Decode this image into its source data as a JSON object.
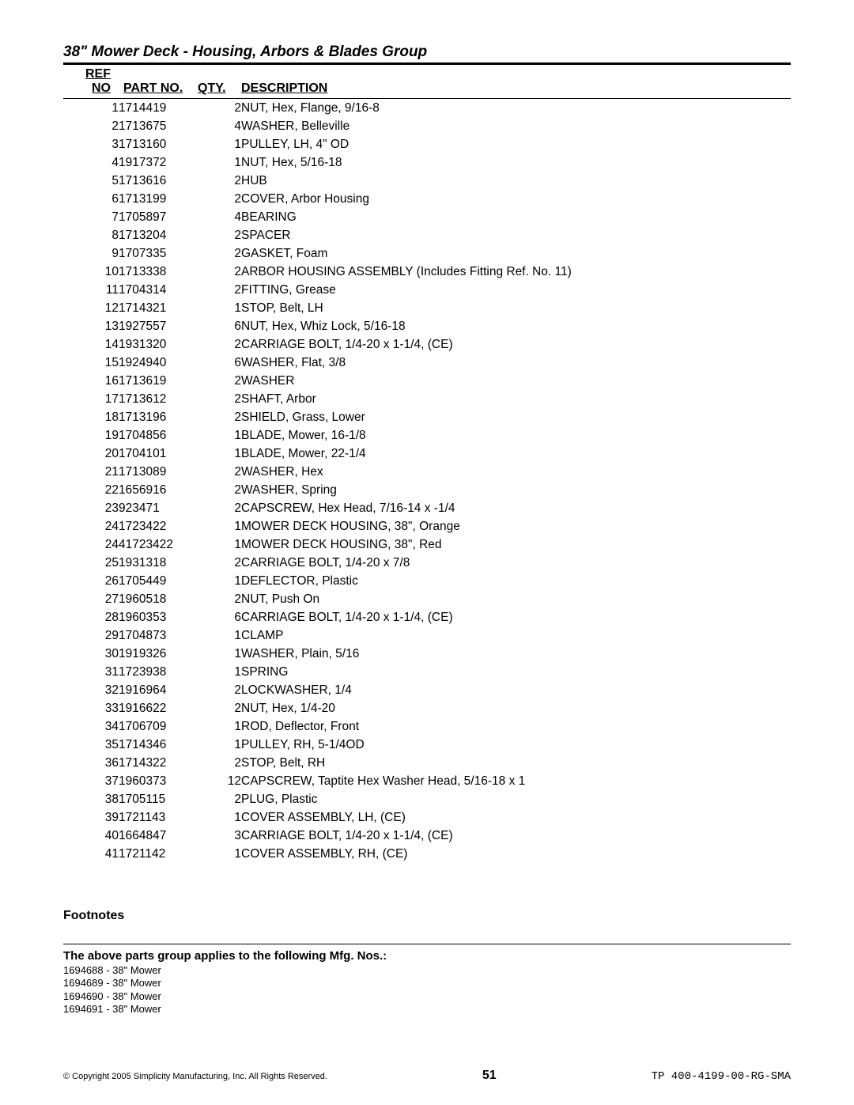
{
  "title": "38\" Mower Deck - Housing, Arbors & Blades Group",
  "columns": {
    "refno": "REF NO",
    "partno": "PART NO.",
    "qty": "QTY.",
    "desc": "DESCRIPTION"
  },
  "rows": [
    {
      "ref": "1",
      "part": "1714419",
      "qty": "2",
      "desc": "NUT, Hex, Flange, 9/16-8"
    },
    {
      "ref": "2",
      "part": "1713675",
      "qty": "4",
      "desc": "WASHER, Belleville"
    },
    {
      "ref": "3",
      "part": "1713160",
      "qty": "1",
      "desc": "PULLEY, LH, 4\" OD"
    },
    {
      "ref": "4",
      "part": "1917372",
      "qty": "1",
      "desc": "NUT, Hex, 5/16-18"
    },
    {
      "ref": "5",
      "part": "1713616",
      "qty": "2",
      "desc": "HUB"
    },
    {
      "ref": "6",
      "part": "1713199",
      "qty": "2",
      "desc": "COVER, Arbor Housing"
    },
    {
      "ref": "7",
      "part": "1705897",
      "qty": "4",
      "desc": "BEARING"
    },
    {
      "ref": "8",
      "part": "1713204",
      "qty": "2",
      "desc": "SPACER"
    },
    {
      "ref": "9",
      "part": "1707335",
      "qty": "2",
      "desc": "GASKET, Foam"
    },
    {
      "ref": "10",
      "part": "1713338",
      "qty": "2",
      "desc": "ARBOR HOUSING ASSEMBLY (Includes  Fitting Ref. No. 11)"
    },
    {
      "ref": "11",
      "part": "1704314",
      "qty": "2",
      "desc": "FITTING, Grease"
    },
    {
      "ref": "12",
      "part": "1714321",
      "qty": "1",
      "desc": "STOP, Belt, LH"
    },
    {
      "ref": "13",
      "part": "1927557",
      "qty": "6",
      "desc": "NUT, Hex, Whiz Lock, 5/16-18"
    },
    {
      "ref": "14",
      "part": "1931320",
      "qty": "2",
      "desc": "CARRIAGE BOLT, 1/4-20 x 1-1/4, (CE)"
    },
    {
      "ref": "15",
      "part": "1924940",
      "qty": "6",
      "desc": "WASHER, Flat, 3/8"
    },
    {
      "ref": "16",
      "part": "1713619",
      "qty": "2",
      "desc": "WASHER"
    },
    {
      "ref": "17",
      "part": "1713612",
      "qty": "2",
      "desc": "SHAFT, Arbor"
    },
    {
      "ref": "18",
      "part": "1713196",
      "qty": "2",
      "desc": "SHIELD, Grass, Lower"
    },
    {
      "ref": "19",
      "part": "1704856",
      "qty": "1",
      "desc": "BLADE, Mower, 16-1/8"
    },
    {
      "ref": "20",
      "part": "1704101",
      "qty": "1",
      "desc": "BLADE, Mower, 22-1/4"
    },
    {
      "ref": "21",
      "part": "1713089",
      "qty": "2",
      "desc": "WASHER, Hex"
    },
    {
      "ref": "22",
      "part": "1656916",
      "qty": "2",
      "desc": "WASHER, Spring"
    },
    {
      "ref": "23",
      "part": "923471",
      "qty": "2",
      "desc": "CAPSCREW, Hex Head, 7/16-14 x -1/4"
    },
    {
      "ref": "24",
      "part": "1723422",
      "qty": "1",
      "desc": "MOWER DECK HOUSING, 38\", Orange"
    },
    {
      "ref": "24",
      "part": "41723422",
      "qty": "1",
      "desc": "MOWER DECK HOUSING, 38\", Red"
    },
    {
      "ref": "25",
      "part": "1931318",
      "qty": "2",
      "desc": "CARRIAGE BOLT, 1/4-20 x 7/8"
    },
    {
      "ref": "26",
      "part": "1705449",
      "qty": "1",
      "desc": "DEFLECTOR, Plastic"
    },
    {
      "ref": "27",
      "part": "1960518",
      "qty": "2",
      "desc": "NUT, Push On"
    },
    {
      "ref": "28",
      "part": "1960353",
      "qty": "6",
      "desc": "CARRIAGE BOLT, 1/4-20 x 1-1/4, (CE)"
    },
    {
      "ref": "29",
      "part": "1704873",
      "qty": "1",
      "desc": "CLAMP"
    },
    {
      "ref": "30",
      "part": "1919326",
      "qty": "1",
      "desc": "WASHER, Plain, 5/16"
    },
    {
      "ref": "31",
      "part": "1723938",
      "qty": "1",
      "desc": "SPRING"
    },
    {
      "ref": "32",
      "part": "1916964",
      "qty": "2",
      "desc": "LOCKWASHER, 1/4"
    },
    {
      "ref": "33",
      "part": "1916622",
      "qty": "2",
      "desc": "NUT, Hex, 1/4-20"
    },
    {
      "ref": "34",
      "part": "1706709",
      "qty": "1",
      "desc": "ROD, Deflector, Front"
    },
    {
      "ref": "35",
      "part": "1714346",
      "qty": "1",
      "desc": "PULLEY, RH, 5-1/4OD"
    },
    {
      "ref": "36",
      "part": "1714322",
      "qty": "2",
      "desc": "STOP, Belt, RH"
    },
    {
      "ref": "37",
      "part": "1960373",
      "qty": "12",
      "desc": "CAPSCREW, Taptite Hex Washer Head, 5/16-18 x 1"
    },
    {
      "ref": "38",
      "part": "1705115",
      "qty": "2",
      "desc": "PLUG, Plastic"
    },
    {
      "ref": "39",
      "part": "1721143",
      "qty": "1",
      "desc": "COVER ASSEMBLY, LH,  (CE)"
    },
    {
      "ref": "40",
      "part": "1664847",
      "qty": "3",
      "desc": "CARRIAGE BOLT, 1/4-20 x 1-1/4, (CE)"
    },
    {
      "ref": "41",
      "part": "1721142",
      "qty": "1",
      "desc": "COVER ASSEMBLY, RH, (CE)"
    }
  ],
  "footnotes_label": "Footnotes",
  "mfg_heading": "The above parts group applies to the following Mfg. Nos.:",
  "mfg_items": [
    "1694688 - 38\" Mower",
    "1694689 - 38\" Mower",
    "1694690 - 38\" Mower",
    "1694691 - 38\" Mower"
  ],
  "footer": {
    "copyright": "© Copyright 2005 Simplicity Manufacturing, Inc. All Rights Reserved.",
    "page": "51",
    "docid": "TP 400-4199-00-RG-SMA"
  }
}
